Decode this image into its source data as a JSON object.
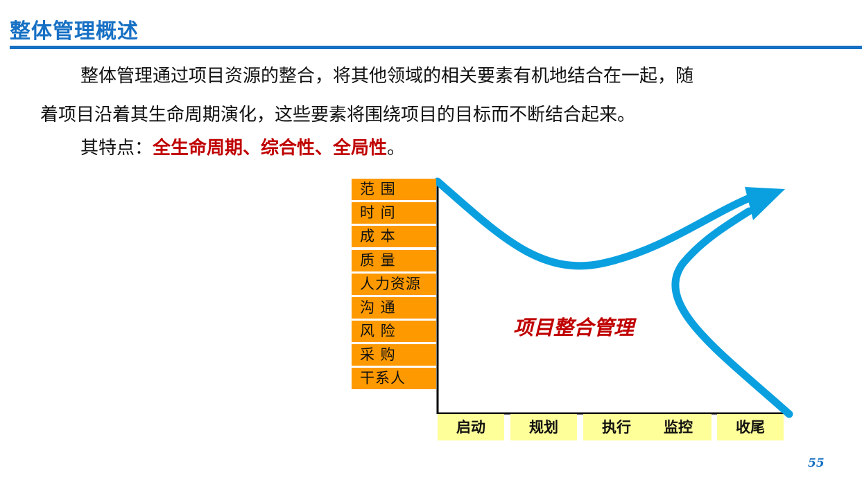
{
  "title": "整体管理概述",
  "paragraph1": "整体管理通过项目资源的整合，将其他领域的相关要素有机地结合在一起，随",
  "paragraph2": "着项目沿着其生命周期演化，这些要素将围绕项目的目标而不断结合起来。",
  "features_prefix": "其特点：",
  "features_highlight": "全生命周期、综合性、全局性",
  "features_suffix": "。",
  "diagram": {
    "center_label": "项目整合管理",
    "knowledge_areas": [
      "范 围",
      "时 间",
      "成 本",
      "质 量",
      "人力资源",
      "沟 通",
      "风 险",
      "采 购",
      "干系人"
    ],
    "phases": [
      "启动",
      "规划",
      "执行",
      "监控",
      "收尾"
    ],
    "colors": {
      "area_fill": "#ff9900",
      "phase_fill": "#ffff99",
      "arrow": "#0aa0e0",
      "label": "#c00000"
    }
  },
  "page_number": "55"
}
